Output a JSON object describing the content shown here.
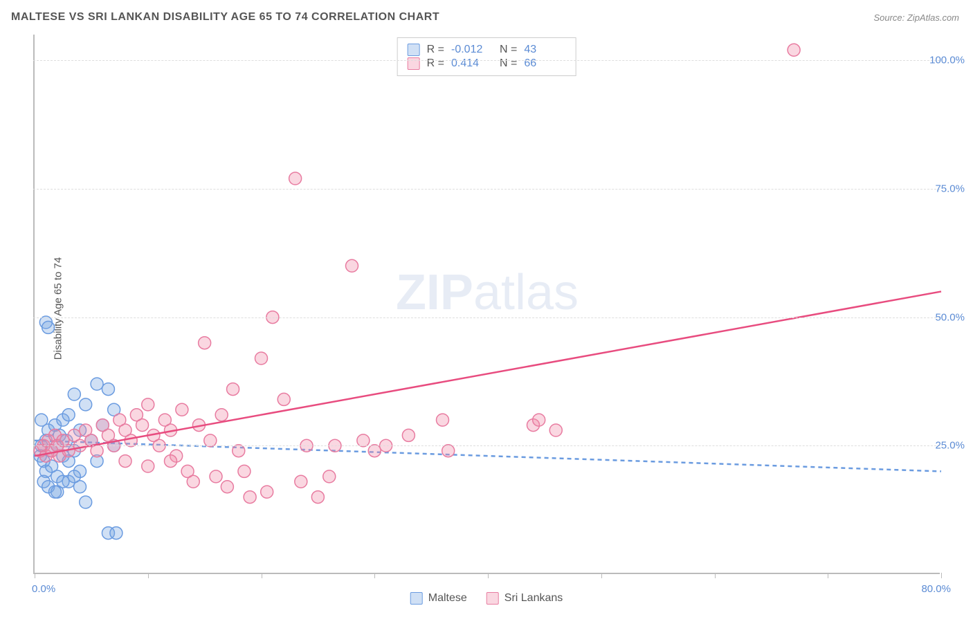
{
  "title": "MALTESE VS SRI LANKAN DISABILITY AGE 65 TO 74 CORRELATION CHART",
  "source": "Source: ZipAtlas.com",
  "ylabel": "Disability Age 65 to 74",
  "watermark_zip": "ZIP",
  "watermark_atlas": "atlas",
  "chart": {
    "type": "scatter",
    "background_color": "#ffffff",
    "grid_color": "#dddddd",
    "axis_color": "#bbbbbb",
    "tick_label_color": "#5b8bd4",
    "xlim": [
      0,
      80
    ],
    "ylim": [
      0,
      105
    ],
    "x_ticks": [
      0,
      10,
      20,
      30,
      40,
      50,
      60,
      70,
      80
    ],
    "x_tick_labels": {
      "left": "0.0%",
      "right": "80.0%"
    },
    "y_gridlines": [
      25,
      50,
      75,
      100
    ],
    "y_tick_labels": [
      "25.0%",
      "50.0%",
      "75.0%",
      "100.0%"
    ],
    "marker_radius": 9,
    "marker_stroke_width": 1.5,
    "trendline_width": 2.5,
    "series": [
      {
        "name": "Maltese",
        "fill": "rgba(120,165,225,0.35)",
        "stroke": "#6a9be0",
        "trend_stroke": "#6a9be0",
        "trend_dash": "6,5",
        "R": "-0.012",
        "N": "43",
        "trendline": {
          "x1": 0,
          "y1": 26,
          "x2": 80,
          "y2": 20
        },
        "points": [
          [
            0.5,
            23
          ],
          [
            0.6,
            25
          ],
          [
            0.8,
            22
          ],
          [
            1.0,
            26
          ],
          [
            1.0,
            20
          ],
          [
            1.2,
            28
          ],
          [
            1.5,
            24
          ],
          [
            1.5,
            21
          ],
          [
            1.8,
            29
          ],
          [
            2.0,
            25
          ],
          [
            2.0,
            19
          ],
          [
            2.2,
            27
          ],
          [
            2.5,
            23
          ],
          [
            2.5,
            30
          ],
          [
            2.8,
            26
          ],
          [
            3.0,
            22
          ],
          [
            3.0,
            31
          ],
          [
            3.5,
            24
          ],
          [
            3.5,
            35
          ],
          [
            4.0,
            28
          ],
          [
            4.0,
            20
          ],
          [
            4.5,
            33
          ],
          [
            5.0,
            26
          ],
          [
            5.5,
            37
          ],
          [
            5.5,
            22
          ],
          [
            6.0,
            29
          ],
          [
            6.5,
            36
          ],
          [
            7.0,
            25
          ],
          [
            7.0,
            32
          ],
          [
            0.8,
            18
          ],
          [
            1.2,
            17
          ],
          [
            2.0,
            16
          ],
          [
            3.0,
            18
          ],
          [
            4.0,
            17
          ],
          [
            4.5,
            14
          ],
          [
            1.0,
            49
          ],
          [
            1.2,
            48
          ],
          [
            6.5,
            8
          ],
          [
            7.2,
            8
          ],
          [
            2.5,
            18
          ],
          [
            3.5,
            19
          ],
          [
            1.8,
            16
          ],
          [
            0.6,
            30
          ]
        ]
      },
      {
        "name": "Sri Lankans",
        "fill": "rgba(240,140,170,0.35)",
        "stroke": "#e87ba0",
        "trend_stroke": "#e84c7f",
        "trend_dash": "",
        "R": "0.414",
        "N": "66",
        "trendline": {
          "x1": 0,
          "y1": 23,
          "x2": 80,
          "y2": 55
        },
        "points": [
          [
            0.5,
            24
          ],
          [
            0.8,
            25
          ],
          [
            1.0,
            23
          ],
          [
            1.2,
            26
          ],
          [
            1.5,
            24
          ],
          [
            1.8,
            27
          ],
          [
            2.0,
            25
          ],
          [
            2.2,
            23
          ],
          [
            2.5,
            26
          ],
          [
            3.0,
            24
          ],
          [
            3.5,
            27
          ],
          [
            4.0,
            25
          ],
          [
            4.5,
            28
          ],
          [
            5.0,
            26
          ],
          [
            5.5,
            24
          ],
          [
            6.0,
            29
          ],
          [
            6.5,
            27
          ],
          [
            7.0,
            25
          ],
          [
            7.5,
            30
          ],
          [
            8.0,
            28
          ],
          [
            8.5,
            26
          ],
          [
            9.0,
            31
          ],
          [
            9.5,
            29
          ],
          [
            10.0,
            33
          ],
          [
            10.5,
            27
          ],
          [
            11.0,
            25
          ],
          [
            11.5,
            30
          ],
          [
            12.0,
            28
          ],
          [
            12.5,
            23
          ],
          [
            13.0,
            32
          ],
          [
            13.5,
            20
          ],
          [
            14.0,
            18
          ],
          [
            14.5,
            29
          ],
          [
            15.0,
            45
          ],
          [
            15.5,
            26
          ],
          [
            16.0,
            19
          ],
          [
            16.5,
            31
          ],
          [
            17.0,
            17
          ],
          [
            17.5,
            36
          ],
          [
            18.0,
            24
          ],
          [
            18.5,
            20
          ],
          [
            19.0,
            15
          ],
          [
            20.0,
            42
          ],
          [
            20.5,
            16
          ],
          [
            21.0,
            50
          ],
          [
            22.0,
            34
          ],
          [
            23.0,
            77
          ],
          [
            23.5,
            18
          ],
          [
            24.0,
            25
          ],
          [
            25.0,
            15
          ],
          [
            26.0,
            19
          ],
          [
            26.5,
            25
          ],
          [
            28.0,
            60
          ],
          [
            29.0,
            26
          ],
          [
            30.0,
            24
          ],
          [
            31.0,
            25
          ],
          [
            33.0,
            27
          ],
          [
            36.0,
            30
          ],
          [
            36.5,
            24
          ],
          [
            44.0,
            29
          ],
          [
            44.5,
            30
          ],
          [
            46.0,
            28
          ],
          [
            67.0,
            102
          ],
          [
            10.0,
            21
          ],
          [
            12.0,
            22
          ],
          [
            8.0,
            22
          ]
        ]
      }
    ]
  },
  "stats_legend": {
    "r_label": "R =",
    "n_label": "N ="
  },
  "bottom_legend": {
    "items": [
      "Maltese",
      "Sri Lankans"
    ]
  }
}
